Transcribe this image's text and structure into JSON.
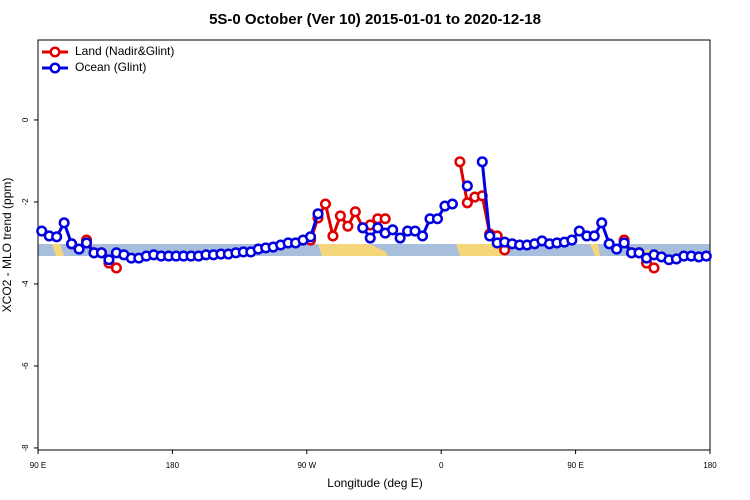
{
  "chart_data": {
    "type": "line",
    "title": "5S-0 October (Ver 10)   2015-01-01 to 2020-12-18",
    "x_label": "Longitude (deg E)",
    "y_label": "XCO2 - MLO trend (ppm)",
    "xlim": [
      90,
      540
    ],
    "ylim": [
      -8.05,
      1.95
    ],
    "xticks": [
      {
        "value": 90,
        "label": "90 E"
      },
      {
        "value": 180,
        "label": "180"
      },
      {
        "value": 270,
        "label": "90 W"
      },
      {
        "value": 360,
        "label": "0"
      },
      {
        "value": 450,
        "label": "90 E"
      },
      {
        "value": 540,
        "label": "180"
      }
    ],
    "yticks": [
      0,
      -2,
      -4,
      -6,
      -8
    ],
    "legend": "top-left",
    "x": [
      92.5,
      97.5,
      102.5,
      107.5,
      112.5,
      117.5,
      122.5,
      127.5,
      132.5,
      137.5,
      142.5,
      147.5,
      152.5,
      157.5,
      162.5,
      167.5,
      172.5,
      177.5,
      182.5,
      187.5,
      192.5,
      197.5,
      202.5,
      207.5,
      212.5,
      217.5,
      222.5,
      227.5,
      232.5,
      237.5,
      242.5,
      247.5,
      252.5,
      257.5,
      262.5,
      267.5,
      272.5,
      277.5,
      282.5,
      287.5,
      292.5,
      297.5,
      302.5,
      307.5,
      312.5,
      317.5,
      322.5,
      327.5,
      332.5,
      337.5,
      342.5,
      347.5,
      352.5,
      357.5,
      362.5,
      367.5,
      372.5,
      377.5,
      382.5,
      387.5,
      392.5,
      397.5,
      402.5,
      407.5,
      412.5,
      417.5,
      422.5,
      427.5,
      432.5,
      437.5,
      442.5,
      447.5,
      452.5,
      457.5,
      462.5,
      467.5,
      472.5,
      477.5,
      482.5,
      487.5,
      492.5,
      497.5,
      502.5,
      507.5,
      512.5,
      517.5,
      522.5,
      527.5,
      532.5,
      537.5
    ],
    "series": [
      {
        "name": "Land (Nadir&Glint)",
        "color": "#e00000",
        "values": [
          null,
          null,
          null,
          null,
          -3.02,
          null,
          -2.93,
          -3.24,
          -3.24,
          -3.49,
          -3.61,
          null,
          null,
          null,
          null,
          null,
          null,
          null,
          null,
          null,
          null,
          null,
          null,
          null,
          null,
          null,
          null,
          null,
          null,
          null,
          null,
          null,
          null,
          null,
          null,
          null,
          -2.93,
          -2.39,
          -2.05,
          -2.83,
          -2.34,
          -2.59,
          -2.24,
          -2.63,
          -2.56,
          -2.41,
          -2.41,
          null,
          null,
          null,
          null,
          null,
          null,
          null,
          null,
          null,
          -1.02,
          -2.02,
          -1.88,
          -1.85,
          -2.78,
          -2.83,
          -3.17,
          null,
          null,
          null,
          null,
          null,
          null,
          null,
          null,
          null,
          null,
          null,
          null,
          null,
          null,
          null,
          -2.93,
          -3.24,
          -3.24,
          -3.49,
          -3.61,
          null,
          null,
          null,
          null,
          null,
          null,
          null
        ]
      },
      {
        "name": "Ocean (Glint)",
        "color": "#0000e0",
        "values": [
          -2.71,
          -2.83,
          -2.85,
          -2.51,
          -3.02,
          -3.15,
          -3.0,
          -3.24,
          -3.24,
          -3.41,
          -3.24,
          -3.29,
          -3.37,
          -3.37,
          -3.32,
          -3.29,
          -3.32,
          -3.32,
          -3.32,
          -3.32,
          -3.32,
          -3.32,
          -3.29,
          -3.29,
          -3.27,
          -3.27,
          -3.24,
          -3.22,
          -3.22,
          -3.15,
          -3.12,
          -3.1,
          -3.05,
          -3.0,
          -3.0,
          -2.93,
          -2.85,
          -2.29,
          null,
          null,
          null,
          null,
          null,
          -2.63,
          -2.88,
          -2.63,
          -2.76,
          -2.68,
          -2.88,
          -2.71,
          -2.71,
          -2.83,
          -2.41,
          -2.41,
          -2.1,
          -2.05,
          null,
          -1.61,
          null,
          -1.02,
          -2.83,
          -3.0,
          -2.98,
          -3.02,
          -3.05,
          -3.05,
          -3.02,
          -2.95,
          -3.02,
          -3.0,
          -2.98,
          -2.93,
          -2.71,
          -2.83,
          -2.83,
          -2.51,
          -3.02,
          -3.15,
          -3.0,
          -3.24,
          -3.24,
          -3.37,
          -3.29,
          -3.34,
          -3.41,
          -3.39,
          -3.32,
          -3.32,
          -3.34,
          -3.32
        ]
      }
    ]
  }
}
